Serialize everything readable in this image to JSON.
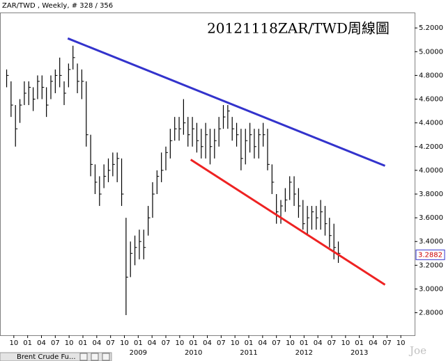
{
  "chart_data": {
    "type": "ohlc",
    "header": "ZAR/TWD , Weekly, # 328 / 356",
    "title": "20121118ZAR/TWD周線圖",
    "watermark": "Joe",
    "tab_label": "Brent Crude Fu...",
    "color": "#000000",
    "x": [
      2006.62,
      2006.7,
      2006.78,
      2006.86,
      2006.94,
      2007.02,
      2007.1,
      2007.18,
      2007.26,
      2007.34,
      2007.42,
      2007.5,
      2007.58,
      2007.66,
      2007.74,
      2007.82,
      2007.9,
      2007.98,
      2008.06,
      2008.14,
      2008.22,
      2008.3,
      2008.38,
      2008.46,
      2008.54,
      2008.62,
      2008.7,
      2008.78,
      2008.86,
      2008.94,
      2009.02,
      2009.1,
      2009.18,
      2009.26,
      2009.34,
      2009.42,
      2009.5,
      2009.58,
      2009.66,
      2009.74,
      2009.82,
      2009.9,
      2009.98,
      2010.06,
      2010.14,
      2010.22,
      2010.3,
      2010.38,
      2010.46,
      2010.54,
      2010.62,
      2010.7,
      2010.78,
      2010.86,
      2010.94,
      2011.02,
      2011.1,
      2011.18,
      2011.26,
      2011.34,
      2011.42,
      2011.5,
      2011.58,
      2011.66,
      2011.74,
      2011.82,
      2011.9,
      2011.98,
      2012.06,
      2012.14,
      2012.22,
      2012.3,
      2012.38,
      2012.46,
      2012.54,
      2012.62
    ],
    "high": [
      4.85,
      4.75,
      4.55,
      4.6,
      4.75,
      4.75,
      4.7,
      4.8,
      4.8,
      4.7,
      4.8,
      4.85,
      4.95,
      4.75,
      4.9,
      5.05,
      4.9,
      4.85,
      4.75,
      4.3,
      4.05,
      3.95,
      4.05,
      4.1,
      4.15,
      4.15,
      4.1,
      3.6,
      3.4,
      3.45,
      3.5,
      3.5,
      3.7,
      3.9,
      4.0,
      4.15,
      4.2,
      4.35,
      4.45,
      4.45,
      4.6,
      4.45,
      4.45,
      4.4,
      4.35,
      4.4,
      4.35,
      4.35,
      4.45,
      4.55,
      4.55,
      4.45,
      4.4,
      4.35,
      4.35,
      4.4,
      4.35,
      4.35,
      4.4,
      4.35,
      4.05,
      3.8,
      3.75,
      3.85,
      3.95,
      3.95,
      3.85,
      3.75,
      3.7,
      3.7,
      3.7,
      3.75,
      3.7,
      3.6,
      3.55,
      3.4
    ],
    "low": [
      4.7,
      4.45,
      4.2,
      4.4,
      4.55,
      4.55,
      4.5,
      4.6,
      4.6,
      4.45,
      4.6,
      4.65,
      4.7,
      4.55,
      4.7,
      4.85,
      4.65,
      4.6,
      4.2,
      3.95,
      3.8,
      3.7,
      3.85,
      3.9,
      3.95,
      3.9,
      3.7,
      2.78,
      3.1,
      3.2,
      3.25,
      3.25,
      3.45,
      3.6,
      3.8,
      3.9,
      4.0,
      4.1,
      4.25,
      4.25,
      4.3,
      4.2,
      4.2,
      4.15,
      4.1,
      4.1,
      4.05,
      4.1,
      4.2,
      4.35,
      4.35,
      4.25,
      4.2,
      4.0,
      4.05,
      4.15,
      4.1,
      4.1,
      4.2,
      4.0,
      3.8,
      3.55,
      3.55,
      3.65,
      3.75,
      3.7,
      3.6,
      3.5,
      3.45,
      3.5,
      3.5,
      3.5,
      3.45,
      3.35,
      3.25,
      3.22
    ],
    "close": [
      4.8,
      4.55,
      4.35,
      4.55,
      4.65,
      4.7,
      4.6,
      4.75,
      4.7,
      4.55,
      4.75,
      4.8,
      4.8,
      4.65,
      4.85,
      4.95,
      4.75,
      4.75,
      4.3,
      4.05,
      3.9,
      3.8,
      3.95,
      4.0,
      4.05,
      4.1,
      3.8,
      3.1,
      3.3,
      3.35,
      3.4,
      3.35,
      3.6,
      3.8,
      3.95,
      4.0,
      4.15,
      4.25,
      4.35,
      4.35,
      4.4,
      4.3,
      4.35,
      4.25,
      4.2,
      4.3,
      4.2,
      4.25,
      4.35,
      4.45,
      4.5,
      4.35,
      4.3,
      4.1,
      4.25,
      4.3,
      4.2,
      4.3,
      4.3,
      4.05,
      3.9,
      3.65,
      3.7,
      3.75,
      3.9,
      3.8,
      3.7,
      3.55,
      3.6,
      3.65,
      3.6,
      3.65,
      3.55,
      3.45,
      3.35,
      3.3
    ],
    "trend_lines": [
      {
        "color": "#3333cc",
        "x": [
          2007.726,
          2013.464
        ],
        "values": [
          5.112,
          4.038
        ]
      },
      {
        "color": "#ee2222",
        "x": [
          2009.95,
          2013.464
        ],
        "values": [
          4.09,
          3.036
        ]
      }
    ],
    "last_price": 3.2882,
    "xlim": [
      2006.5,
      2014.0
    ],
    "ylim": [
      2.61,
      5.33
    ],
    "xticks": [
      {
        "value": 2006.75,
        "label": "10"
      },
      {
        "value": 2007.0,
        "label": "01"
      },
      {
        "value": 2007.25,
        "label": "04"
      },
      {
        "value": 2007.5,
        "label": "07"
      },
      {
        "value": 2007.75,
        "label": "10"
      },
      {
        "value": 2008.0,
        "label": "01"
      },
      {
        "value": 2008.25,
        "label": "04"
      },
      {
        "value": 2008.5,
        "label": "07"
      },
      {
        "value": 2008.75,
        "label": "10"
      },
      {
        "value": 2009.0,
        "label": "01"
      },
      {
        "value": 2009.25,
        "label": "04"
      },
      {
        "value": 2009.5,
        "label": "07"
      },
      {
        "value": 2009.75,
        "label": "10"
      },
      {
        "value": 2010.0,
        "label": "01"
      },
      {
        "value": 2010.25,
        "label": "04"
      },
      {
        "value": 2010.5,
        "label": "07"
      },
      {
        "value": 2010.75,
        "label": "10"
      },
      {
        "value": 2011.0,
        "label": "01"
      },
      {
        "value": 2011.25,
        "label": "04"
      },
      {
        "value": 2011.5,
        "label": "07"
      },
      {
        "value": 2011.75,
        "label": "10"
      },
      {
        "value": 2012.0,
        "label": "01"
      },
      {
        "value": 2012.25,
        "label": "04"
      },
      {
        "value": 2012.5,
        "label": "07"
      },
      {
        "value": 2012.75,
        "label": "10"
      },
      {
        "value": 2013.0,
        "label": "01"
      },
      {
        "value": 2013.25,
        "label": "04"
      },
      {
        "value": 2013.5,
        "label": "07"
      },
      {
        "value": 2013.75,
        "label": "10"
      }
    ],
    "year_ticks": [
      2009,
      2010,
      2011,
      2012,
      2013
    ],
    "yticks": [
      {
        "value": 5.2,
        "label": "5.2000"
      },
      {
        "value": 5.0,
        "label": "5.0000"
      },
      {
        "value": 4.8,
        "label": "4.8000"
      },
      {
        "value": 4.6,
        "label": "4.6000"
      },
      {
        "value": 4.4,
        "label": "4.4000"
      },
      {
        "value": 4.2,
        "label": "4.2000"
      },
      {
        "value": 4.0,
        "label": "4.0000"
      },
      {
        "value": 3.8,
        "label": "3.8000"
      },
      {
        "value": 3.6,
        "label": "3.6000"
      },
      {
        "value": 3.4,
        "label": "3.4000"
      },
      {
        "value": 3.2,
        "label": "3.2000"
      },
      {
        "value": 3.0,
        "label": "3.0000"
      },
      {
        "value": 2.8,
        "label": "2.8000"
      }
    ]
  }
}
